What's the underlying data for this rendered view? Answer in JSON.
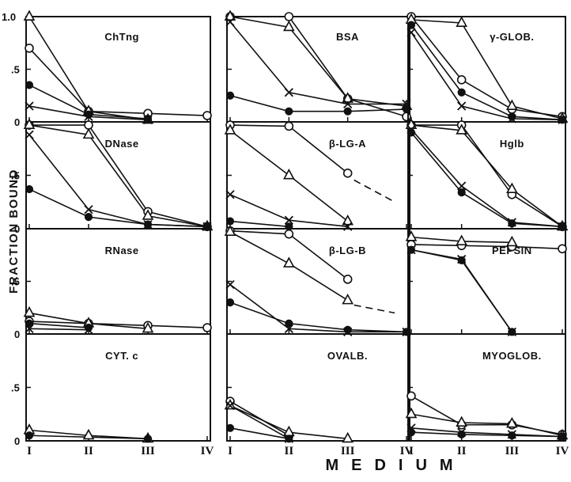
{
  "chart_data": {
    "type": "line",
    "ylabel": "FRACTION BOUND",
    "xlabel": "MEDIUM",
    "x_categories": [
      "I",
      "II",
      "III",
      "IV"
    ],
    "y_ticks": [
      {
        "label": "1.0",
        "value": 1.0
      },
      {
        "label": ".5",
        "value": 0.5
      },
      {
        "label": "0",
        "value": 0
      }
    ],
    "ylim": [
      0,
      1.0
    ],
    "markers": [
      "open-triangle",
      "open-circle",
      "cross",
      "filled-circle"
    ],
    "panels": [
      {
        "label": "ChTng",
        "series": [
          {
            "marker": "open-triangle",
            "values": [
              1.0,
              0.1,
              0.02,
              null
            ]
          },
          {
            "marker": "open-circle",
            "values": [
              0.7,
              0.1,
              0.08,
              0.06
            ]
          },
          {
            "marker": "filled-circle",
            "values": [
              0.35,
              0.07,
              0.03,
              null
            ]
          },
          {
            "marker": "cross",
            "values": [
              0.15,
              0.05,
              0.02,
              null
            ]
          }
        ]
      },
      {
        "label": "BSA",
        "series": [
          {
            "marker": "open-circle",
            "values": [
              1.0,
              1.0,
              0.22,
              0.05
            ]
          },
          {
            "marker": "open-triangle",
            "values": [
              1.0,
              0.9,
              0.22,
              0.15
            ]
          },
          {
            "marker": "cross",
            "values": [
              0.95,
              0.28,
              0.17,
              0.17
            ]
          },
          {
            "marker": "filled-circle",
            "values": [
              0.25,
              0.1,
              0.1,
              0.12
            ]
          }
        ]
      },
      {
        "label": "γ-GLOB.",
        "series": [
          {
            "marker": "open-circle",
            "values": [
              1.0,
              0.4,
              0.12,
              0.05
            ]
          },
          {
            "marker": "open-triangle",
            "values": [
              0.97,
              0.94,
              0.15,
              0.03
            ]
          },
          {
            "marker": "filled-circle",
            "values": [
              0.92,
              0.28,
              0.05,
              0.02
            ]
          },
          {
            "marker": "cross",
            "values": [
              0.85,
              0.15,
              0.03,
              0.02
            ]
          }
        ]
      },
      {
        "label": "DNase",
        "series": [
          {
            "marker": "open-circle",
            "values": [
              0.97,
              0.97,
              0.16,
              0.02
            ]
          },
          {
            "marker": "open-triangle",
            "values": [
              0.97,
              0.88,
              0.12,
              0.02
            ]
          },
          {
            "marker": "cross",
            "values": [
              0.88,
              0.18,
              0.04,
              0.02
            ]
          },
          {
            "marker": "filled-circle",
            "values": [
              0.37,
              0.11,
              0.04,
              0.02
            ]
          }
        ]
      },
      {
        "label": "β-LG-A",
        "series": [
          {
            "marker": "open-circle",
            "values": [
              0.97,
              0.96,
              0.52,
              null
            ]
          },
          {
            "marker": "open-triangle",
            "values": [
              0.92,
              0.5,
              0.07,
              null
            ]
          },
          {
            "marker": "cross",
            "values": [
              0.32,
              0.08,
              0.02,
              null
            ]
          },
          {
            "marker": "filled-circle",
            "values": [
              0.07,
              0.02,
              null,
              null
            ]
          }
        ],
        "dashed_extension": {
          "from": [
            2,
            0.5
          ],
          "to": [
            2.8,
            0.25
          ]
        }
      },
      {
        "label": "Hglb",
        "series": [
          {
            "marker": "open-circle",
            "values": [
              0.97,
              0.97,
              0.32,
              0.02
            ]
          },
          {
            "marker": "open-triangle",
            "values": [
              0.97,
              0.92,
              0.37,
              0.02
            ]
          },
          {
            "marker": "cross",
            "values": [
              0.93,
              0.4,
              0.06,
              0.02
            ]
          },
          {
            "marker": "filled-circle",
            "values": [
              0.9,
              0.34,
              0.05,
              0.02
            ]
          }
        ]
      },
      {
        "label": "RNase",
        "series": [
          {
            "marker": "open-triangle",
            "values": [
              0.2,
              0.1,
              0.05,
              null
            ]
          },
          {
            "marker": "open-circle",
            "values": [
              0.12,
              0.1,
              0.08,
              0.06
            ]
          },
          {
            "marker": "filled-circle",
            "values": [
              0.1,
              0.06,
              null,
              null
            ]
          },
          {
            "marker": "cross",
            "values": [
              0.05,
              0.04,
              null,
              null
            ]
          }
        ]
      },
      {
        "label": "β-LG-B",
        "series": [
          {
            "marker": "open-triangle",
            "values": [
              0.97,
              0.67,
              0.32,
              null
            ]
          },
          {
            "marker": "open-circle",
            "values": [
              0.98,
              0.95,
              0.52,
              null
            ]
          },
          {
            "marker": "cross",
            "values": [
              0.47,
              0.05,
              0.02,
              0.02
            ]
          },
          {
            "marker": "filled-circle",
            "values": [
              0.3,
              0.1,
              0.04,
              0.02
            ]
          }
        ],
        "dashed_extension": {
          "from": [
            2,
            0.32
          ],
          "to": [
            2.8,
            0.2
          ]
        }
      },
      {
        "label": "PEPSIN",
        "series": [
          {
            "marker": "open-triangle",
            "values": [
              0.92,
              0.88,
              0.87,
              null
            ]
          },
          {
            "marker": "open-circle",
            "values": [
              0.85,
              0.84,
              0.83,
              0.81
            ]
          },
          {
            "marker": "filled-circle",
            "values": [
              0.8,
              0.7,
              0.02,
              null
            ]
          },
          {
            "marker": "cross",
            "values": [
              0.8,
              0.71,
              0.02,
              null
            ]
          }
        ]
      },
      {
        "label": "CYT. c",
        "series": [
          {
            "marker": "open-triangle",
            "values": [
              0.1,
              0.05,
              0.02,
              null
            ]
          },
          {
            "marker": "open-circle",
            "values": [
              0.07,
              null,
              null,
              null
            ]
          },
          {
            "marker": "filled-circle",
            "values": [
              0.05,
              null,
              0.02,
              null
            ]
          }
        ]
      },
      {
        "label": "OVALB.",
        "series": [
          {
            "marker": "open-circle",
            "values": [
              0.37,
              0.05,
              null,
              null
            ]
          },
          {
            "marker": "open-triangle",
            "values": [
              0.33,
              0.08,
              0.02,
              null
            ]
          },
          {
            "marker": "cross",
            "values": [
              0.33,
              0.02,
              null,
              null
            ]
          },
          {
            "marker": "filled-circle",
            "values": [
              0.12,
              0.02,
              null,
              null
            ]
          }
        ]
      },
      {
        "label": "MYOGLOB.",
        "series": [
          {
            "marker": "open-circle",
            "values": [
              0.42,
              0.15,
              0.15,
              0.06
            ]
          },
          {
            "marker": "open-triangle",
            "values": [
              0.25,
              0.17,
              0.16,
              0.05
            ]
          },
          {
            "marker": "cross",
            "values": [
              0.12,
              0.08,
              0.06,
              0.04
            ]
          },
          {
            "marker": "filled-circle",
            "values": [
              0.08,
              0.06,
              0.05,
              0.04
            ]
          }
        ]
      }
    ]
  }
}
